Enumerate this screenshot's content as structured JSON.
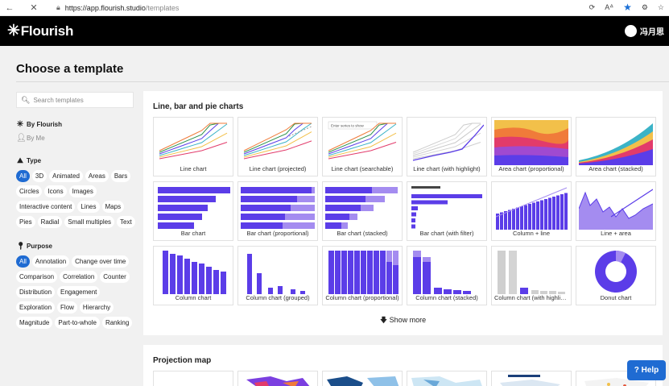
{
  "browser": {
    "url_host": "https://app.flourish.studio",
    "url_path": "/templates"
  },
  "header": {
    "logo_text": "Flourish",
    "user_name": "冯月思"
  },
  "page_title": "Choose a template",
  "sidebar": {
    "search_placeholder": "Search templates",
    "owners": [
      {
        "label": "By Flourish",
        "icon": "flourish-star-icon"
      },
      {
        "label": "By Me",
        "icon": "person-icon"
      }
    ],
    "type_heading": "Type",
    "type_chips": [
      "All",
      "3D",
      "Animated",
      "Areas",
      "Bars",
      "Circles",
      "Icons",
      "Images",
      "Interactive content",
      "Lines",
      "Maps",
      "Pies",
      "Radial",
      "Small multiples",
      "Text"
    ],
    "purpose_heading": "Purpose",
    "purpose_chips": [
      "All",
      "Annotation",
      "Change over time",
      "Comparison",
      "Correlation",
      "Counter",
      "Distribution",
      "Engagement",
      "Exploration",
      "Flow",
      "Hierarchy",
      "Magnitude",
      "Part-to-whole",
      "Ranking"
    ]
  },
  "main": {
    "section_title": "Line, bar and pie charts",
    "templates": [
      {
        "label": "Line chart",
        "kind": "line"
      },
      {
        "label": "Line chart (projected)",
        "kind": "line-projected"
      },
      {
        "label": "Line chart (searchable)",
        "kind": "line-searchable"
      },
      {
        "label": "Line chart (with highlight)",
        "kind": "line-highlight"
      },
      {
        "label": "Area chart (proportional)",
        "kind": "area-prop"
      },
      {
        "label": "Area chart (stacked)",
        "kind": "area-stacked"
      },
      {
        "label": "Bar chart",
        "kind": "bar"
      },
      {
        "label": "Bar chart (proportional)",
        "kind": "bar-prop"
      },
      {
        "label": "Bar chart (stacked)",
        "kind": "bar-stacked"
      },
      {
        "label": "Bar chart (with filter)",
        "kind": "bar-filter"
      },
      {
        "label": "Column + line",
        "kind": "col-line"
      },
      {
        "label": "Line + area",
        "kind": "line-area"
      },
      {
        "label": "Column chart",
        "kind": "column"
      },
      {
        "label": "Column chart (grouped)",
        "kind": "column-grouped"
      },
      {
        "label": "Column chart (proportional)",
        "kind": "column-prop"
      },
      {
        "label": "Column chart (stacked)",
        "kind": "column-stacked"
      },
      {
        "label": "Column chart (with highlight)",
        "kind": "column-highlight"
      },
      {
        "label": "Donut chart",
        "kind": "donut"
      }
    ],
    "thumb_search_text": "Enter series to show",
    "show_more": "Show more",
    "section2_title": "Projection map"
  },
  "help_button": "? Help",
  "colors": {
    "accent": "#1f6bd2",
    "purple": "#5b3de8",
    "light_purple": "#a48cf0"
  }
}
